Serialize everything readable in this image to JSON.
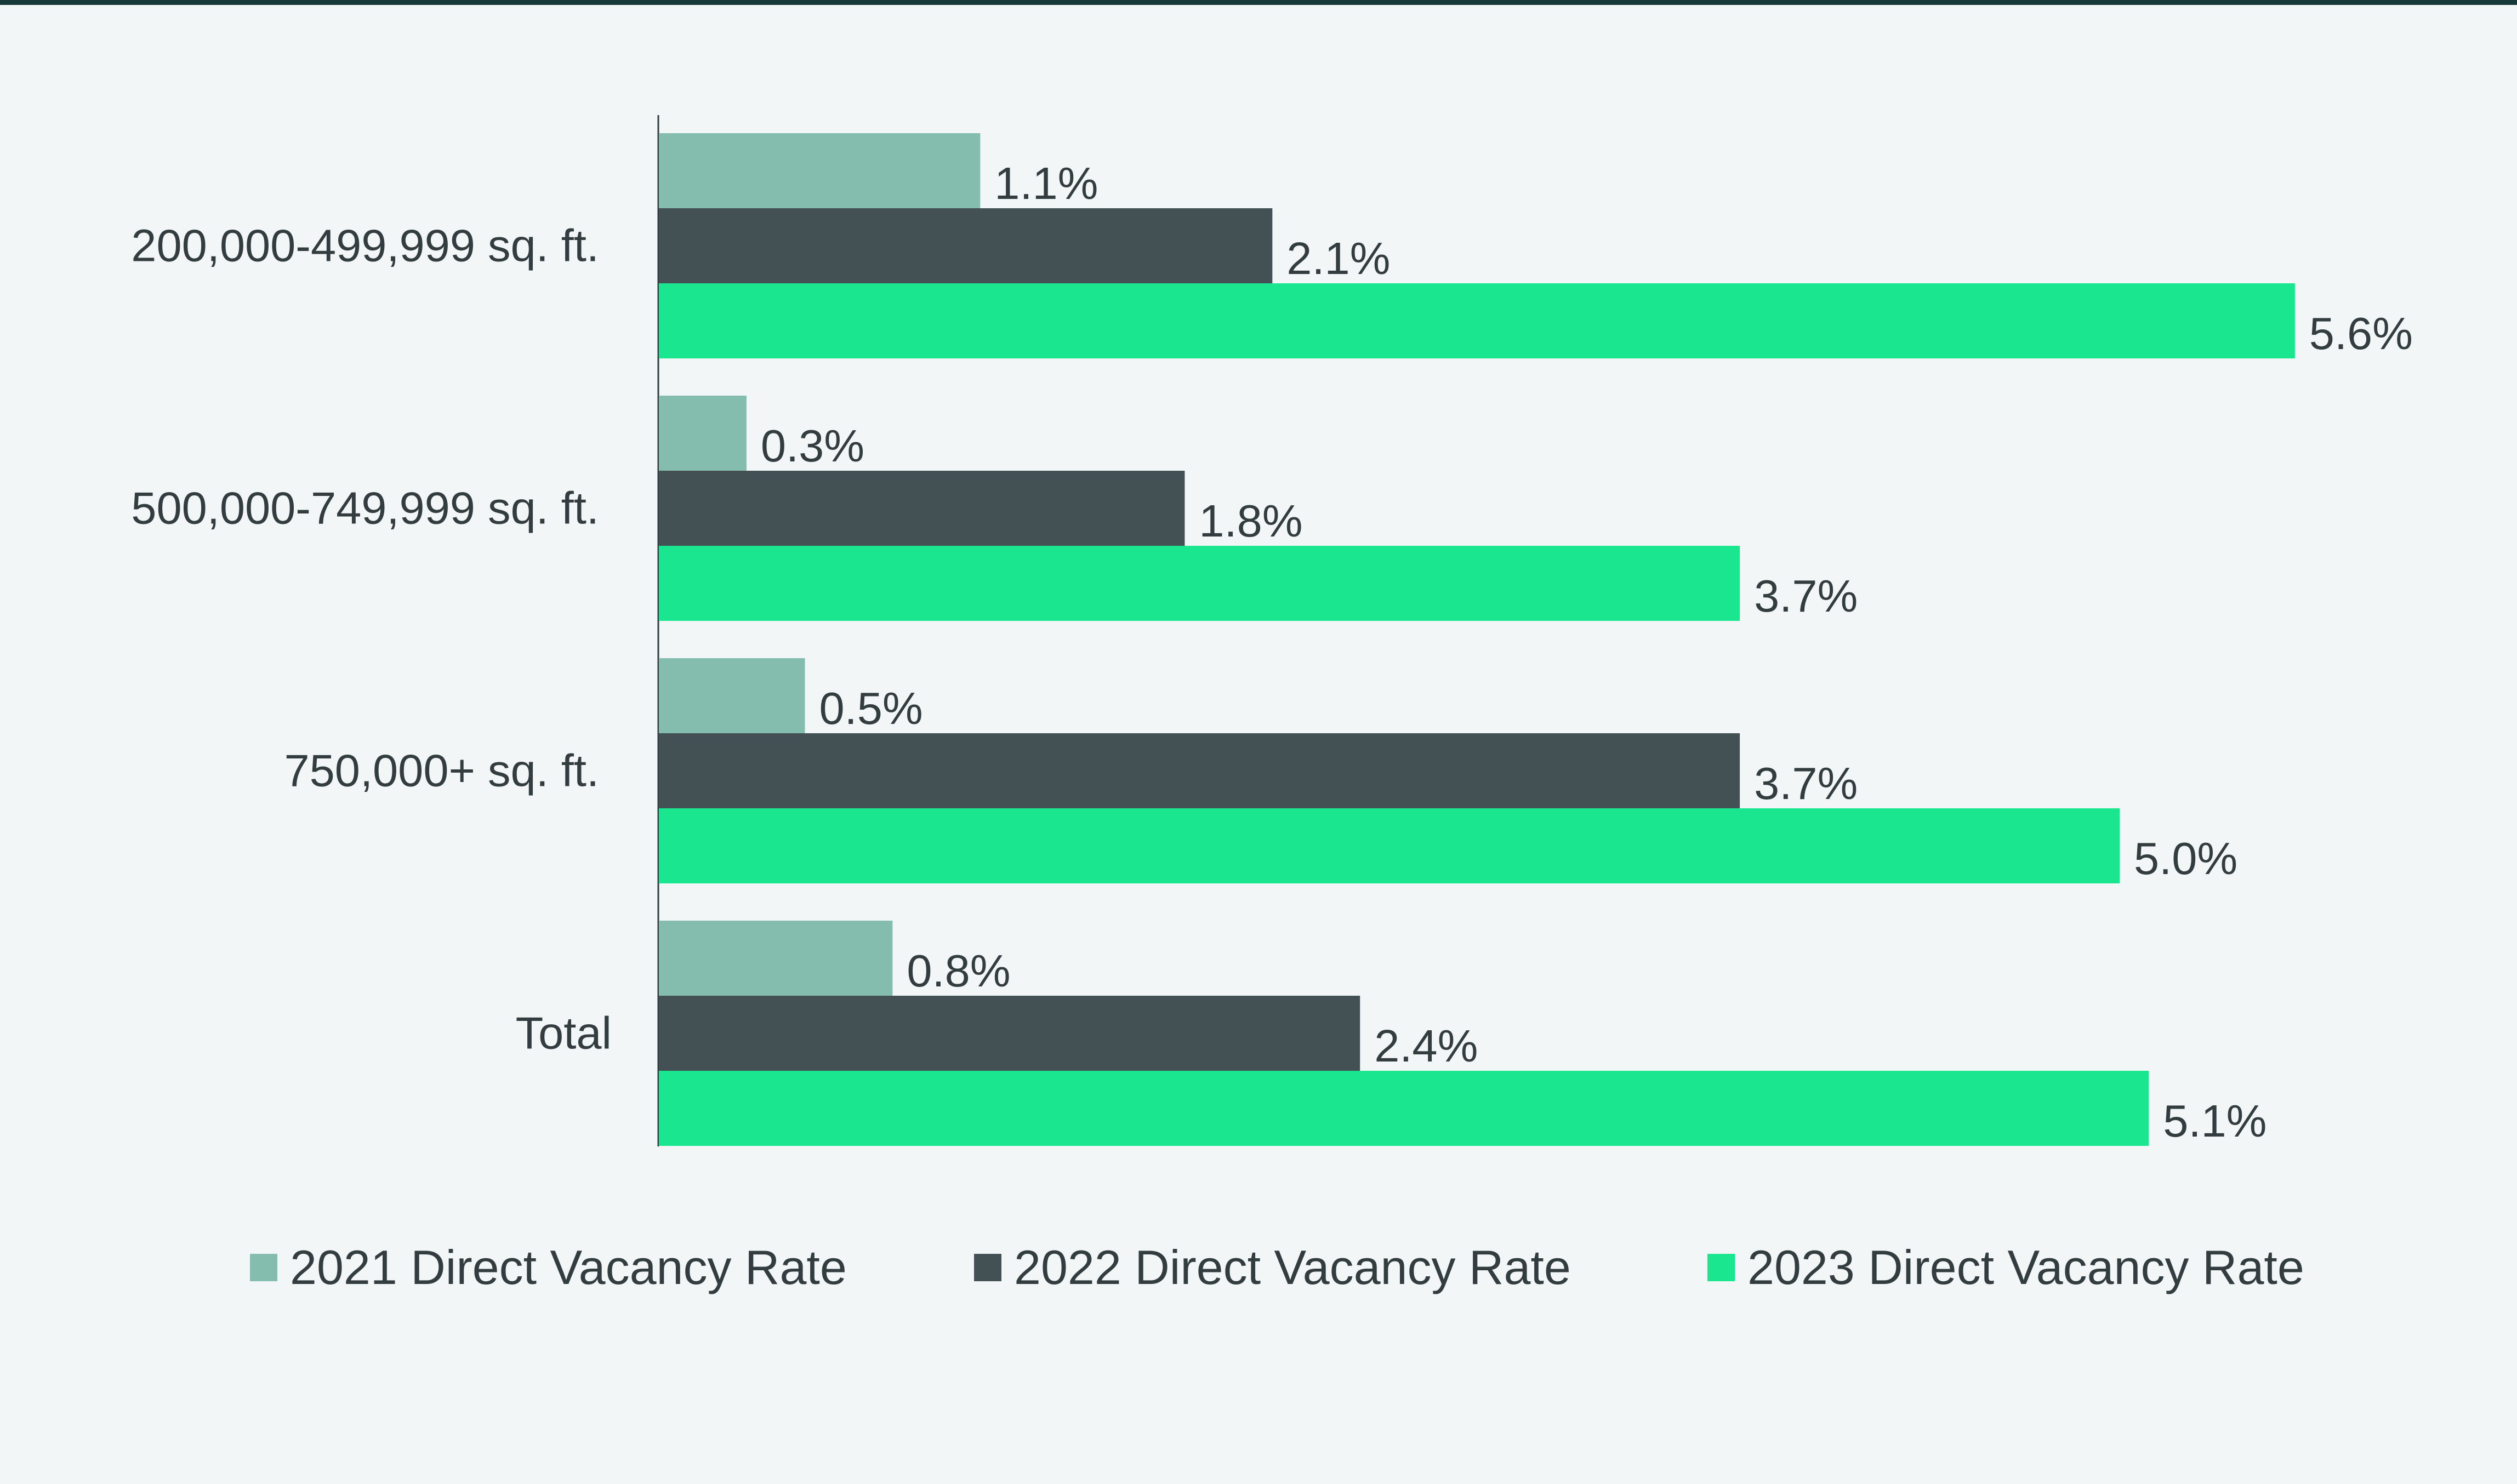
{
  "chart_data": {
    "type": "bar",
    "orientation": "horizontal",
    "categories": [
      "200,000-499,999 sq. ft.",
      "500,000-749,999 sq. ft.",
      "750,000+ sq. ft.",
      "Total"
    ],
    "series": [
      {
        "name": "2021 Direct Vacancy Rate",
        "color": "#84bcad",
        "values": [
          1.1,
          0.3,
          0.5,
          0.8
        ],
        "labels": [
          "1.1%",
          "0.3%",
          "0.5%",
          "0.8%"
        ]
      },
      {
        "name": "2022 Direct Vacancy Rate",
        "color": "#435155",
        "values": [
          2.1,
          1.8,
          3.7,
          2.4
        ],
        "labels": [
          "2.1%",
          "1.8%",
          "3.7%",
          "2.4%"
        ]
      },
      {
        "name": "2023 Direct Vacancy Rate",
        "color": "#19e68f",
        "values": [
          5.6,
          3.7,
          5.0,
          5.1
        ],
        "labels": [
          "5.6%",
          "3.7%",
          "5.0%",
          "5.1%"
        ]
      }
    ],
    "title": "",
    "xlabel": "",
    "ylabel": "",
    "xlim": [
      0,
      6.2
    ],
    "grid": false,
    "legend_position": "bottom",
    "value_axis_visible": false,
    "colors": {
      "background": "#f2f6f7",
      "top_rule": "#17393a",
      "axis_line": "#333d40",
      "text": "#333d40"
    }
  }
}
